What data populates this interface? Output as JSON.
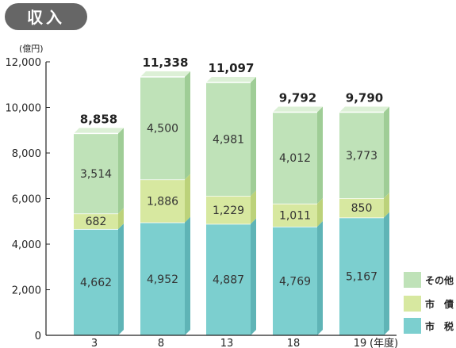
{
  "title": "収入",
  "chart_data": {
    "type": "bar",
    "stacked": true,
    "unit": "(億円)",
    "xunit": "(年度)",
    "categories": [
      "3",
      "8",
      "13",
      "18",
      "19"
    ],
    "series": [
      {
        "name": "市　税",
        "values": [
          4662,
          4952,
          4887,
          4769,
          5167
        ],
        "labels": [
          "4,662",
          "4,952",
          "4,887",
          "4,769",
          "5,167"
        ],
        "color": "#7ccfcf",
        "top": "#a8e2e2",
        "side": "#5fb4b6"
      },
      {
        "name": "市　債",
        "values": [
          682,
          1886,
          1229,
          1011,
          850
        ],
        "labels": [
          "682",
          "1,886",
          "1,229",
          "1,011",
          "850"
        ],
        "color": "#d7e8a0",
        "top": "#e8f3c3",
        "side": "#bcd27a"
      },
      {
        "name": "その他",
        "values": [
          3514,
          4500,
          4981,
          4012,
          3773
        ],
        "labels": [
          "3,514",
          "4,500",
          "4,981",
          "4,012",
          "3,773"
        ],
        "color": "#bfe2b8",
        "top": "#dcf0d6",
        "side": "#9fcd96"
      }
    ],
    "totals": [
      "8,858",
      "11,338",
      "11,097",
      "9,792",
      "9,790"
    ],
    "ylim": [
      0,
      12000
    ],
    "yticks": [
      "0",
      "2,000",
      "4,000",
      "6,000",
      "8,000",
      "10,000",
      "12,000"
    ],
    "grid": false,
    "legend": "bottom-right"
  }
}
